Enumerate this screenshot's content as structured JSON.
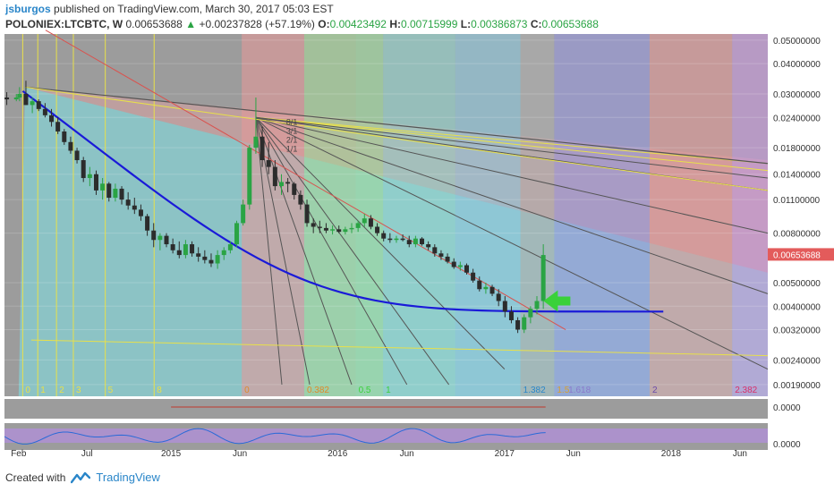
{
  "header": {
    "username": "jsburgos",
    "published_text": "published on TradingView.com, March 30, 2017 05:03 EST",
    "symbol": "POLONIEX:LTCBTC, W",
    "last": "0.00653688",
    "change": "+0.00237828 (+57.19%)",
    "o_label": "O:",
    "o_value": "0.00423492",
    "h_label": "H:",
    "h_value": "0.00715999",
    "l_label": "L:",
    "l_value": "0.00386873",
    "c_label": "C:",
    "c_value": "0.00653688"
  },
  "footer": {
    "created_with": "Created with",
    "brand": "TradingView"
  },
  "colors": {
    "up": "#2aa444",
    "down": "#2c2c2c",
    "arc": "#1a1ad8",
    "price_tag": "#e35b5b",
    "fan_dark": "#555555",
    "fan_yellow": "#e8e04a",
    "fan_red": "#d9534f",
    "arrow": "#3ad13a"
  },
  "chart_data": {
    "type": "candlestick",
    "scale": "log",
    "ylim": [
      0.0017,
      0.053
    ],
    "y_ticks": [
      "0.05000000",
      "0.04000000",
      "0.03000000",
      "0.02400000",
      "0.01800000",
      "0.01400000",
      "0.01100000",
      "0.00800000",
      "0.00500000",
      "0.00400000",
      "0.00320000",
      "0.00240000",
      "0.00190000"
    ],
    "y_tick_values": [
      0.05,
      0.04,
      0.03,
      0.024,
      0.018,
      0.014,
      0.011,
      0.008,
      0.005,
      0.004,
      0.0032,
      0.0024,
      0.0019
    ],
    "x_ticks": [
      "Feb",
      "Jul",
      "2015",
      "Jun",
      "2016",
      "Jun",
      "2017",
      "Jun",
      "2018",
      "Jun"
    ],
    "x_tick_dates": [
      "2014-02-01",
      "2014-07-01",
      "2015-01-01",
      "2015-06-01",
      "2016-01-01",
      "2016-06-01",
      "2017-01-01",
      "2017-06-01",
      "2018-01-01",
      "2018-06-01"
    ],
    "x_range": [
      "2014-01-01",
      "2018-08-01"
    ],
    "last_price": 0.00653688,
    "last_price_label": "0.00653688",
    "fib_time_labels": [
      {
        "text": "0",
        "date": "2014-02-10",
        "color": "#e8e04a"
      },
      {
        "text": "1",
        "date": "2014-03-15",
        "color": "#e8e04a"
      },
      {
        "text": "2",
        "date": "2014-04-25",
        "color": "#e8e04a"
      },
      {
        "text": "3",
        "date": "2014-06-01",
        "color": "#e8e04a"
      },
      {
        "text": "5",
        "date": "2014-08-10",
        "color": "#e8e04a"
      },
      {
        "text": "8",
        "date": "2014-11-25",
        "color": "#e8e04a"
      }
    ],
    "fib_zone_labels": [
      {
        "text": "0",
        "date": "2015-06-05",
        "color": "#e08a2a"
      },
      {
        "text": "0.382",
        "date": "2015-10-20",
        "color": "#e08a2a"
      },
      {
        "text": "0.5",
        "date": "2016-02-10",
        "color": "#3ad13a"
      },
      {
        "text": "1",
        "date": "2016-04-10",
        "color": "#3ad13a"
      },
      {
        "text": "1.382",
        "date": "2017-02-05",
        "color": "#2a86c9"
      },
      {
        "text": "1.5",
        "date": "2017-04-20",
        "color": "#d8a030"
      },
      {
        "text": "1.618",
        "date": "2017-05-15",
        "color": "#8a7acc"
      },
      {
        "text": "2",
        "date": "2017-11-15",
        "color": "#6a4aaa"
      },
      {
        "text": "2.382",
        "date": "2018-05-15",
        "color": "#d8306a"
      }
    ],
    "fan_labels": [
      "8/1",
      "3/1",
      "2/1",
      "1/1",
      "1/2",
      "1/3",
      "1/4",
      "1/8"
    ],
    "indicator_value_1": "0.0000",
    "indicator_value_2": "0.0000",
    "series": [
      {
        "name": "LTCBTC",
        "points": [
          [
            "2014-01-06",
            0.029,
            0.0305,
            0.027,
            0.0285
          ],
          [
            "2014-01-27",
            0.0285,
            0.03,
            0.028,
            0.029
          ],
          [
            "2014-02-03",
            0.029,
            0.032,
            0.028,
            0.03
          ],
          [
            "2014-02-17",
            0.03,
            0.034,
            0.027,
            0.027
          ],
          [
            "2014-03-03",
            0.027,
            0.029,
            0.025,
            0.028
          ],
          [
            "2014-03-17",
            0.028,
            0.0285,
            0.0255,
            0.026
          ],
          [
            "2014-03-31",
            0.026,
            0.0275,
            0.024,
            0.0245
          ],
          [
            "2014-04-14",
            0.0245,
            0.026,
            0.022,
            0.023
          ],
          [
            "2014-04-28",
            0.023,
            0.024,
            0.0205,
            0.021
          ],
          [
            "2014-05-12",
            0.021,
            0.0215,
            0.0185,
            0.019
          ],
          [
            "2014-05-26",
            0.019,
            0.02,
            0.017,
            0.0175
          ],
          [
            "2014-06-09",
            0.0175,
            0.018,
            0.0155,
            0.016
          ],
          [
            "2014-06-23",
            0.016,
            0.0165,
            0.013,
            0.0135
          ],
          [
            "2014-07-07",
            0.0135,
            0.015,
            0.0125,
            0.014
          ],
          [
            "2014-07-21",
            0.014,
            0.0145,
            0.0115,
            0.012
          ],
          [
            "2014-08-04",
            0.012,
            0.0135,
            0.011,
            0.0128
          ],
          [
            "2014-08-18",
            0.0128,
            0.013,
            0.0108,
            0.0112
          ],
          [
            "2014-09-01",
            0.0112,
            0.0128,
            0.0108,
            0.0122
          ],
          [
            "2014-09-15",
            0.0122,
            0.0125,
            0.0105,
            0.011
          ],
          [
            "2014-09-29",
            0.011,
            0.0118,
            0.01,
            0.0104
          ],
          [
            "2014-10-13",
            0.0104,
            0.0112,
            0.0096,
            0.01
          ],
          [
            "2014-10-27",
            0.01,
            0.0105,
            0.009,
            0.0094
          ],
          [
            "2014-11-10",
            0.0094,
            0.0096,
            0.0078,
            0.0082
          ],
          [
            "2014-11-24",
            0.0082,
            0.0088,
            0.007,
            0.0075
          ],
          [
            "2014-12-08",
            0.0075,
            0.008,
            0.0068,
            0.0078
          ],
          [
            "2014-12-22",
            0.0078,
            0.008,
            0.007,
            0.0072
          ],
          [
            "2015-01-05",
            0.0072,
            0.0076,
            0.0066,
            0.0068
          ],
          [
            "2015-01-19",
            0.0068,
            0.0074,
            0.0063,
            0.0065
          ],
          [
            "2015-02-02",
            0.0065,
            0.0075,
            0.0063,
            0.0072
          ],
          [
            "2015-02-16",
            0.0072,
            0.0074,
            0.0064,
            0.0066
          ],
          [
            "2015-03-02",
            0.0066,
            0.007,
            0.0061,
            0.0064
          ],
          [
            "2015-03-16",
            0.0064,
            0.0068,
            0.006,
            0.0062
          ],
          [
            "2015-03-30",
            0.0062,
            0.0066,
            0.0058,
            0.006
          ],
          [
            "2015-04-13",
            0.006,
            0.0068,
            0.0057,
            0.0065
          ],
          [
            "2015-04-27",
            0.0065,
            0.007,
            0.0062,
            0.0068
          ],
          [
            "2015-05-11",
            0.0068,
            0.0074,
            0.0066,
            0.0072
          ],
          [
            "2015-05-25",
            0.0072,
            0.009,
            0.007,
            0.0088
          ],
          [
            "2015-06-08",
            0.0088,
            0.011,
            0.0086,
            0.0105
          ],
          [
            "2015-06-22",
            0.0105,
            0.0185,
            0.01,
            0.018
          ],
          [
            "2015-07-06",
            0.018,
            0.029,
            0.017,
            0.02
          ],
          [
            "2015-07-20",
            0.02,
            0.022,
            0.015,
            0.016
          ],
          [
            "2015-08-03",
            0.016,
            0.019,
            0.014,
            0.015
          ],
          [
            "2015-08-17",
            0.015,
            0.016,
            0.012,
            0.0125
          ],
          [
            "2015-08-31",
            0.0125,
            0.014,
            0.0115,
            0.013
          ],
          [
            "2015-09-14",
            0.013,
            0.0135,
            0.0118,
            0.0128
          ],
          [
            "2015-09-28",
            0.0128,
            0.013,
            0.011,
            0.0115
          ],
          [
            "2015-10-12",
            0.0115,
            0.012,
            0.01,
            0.0105
          ],
          [
            "2015-10-26",
            0.0105,
            0.011,
            0.0085,
            0.0088
          ],
          [
            "2015-11-09",
            0.0088,
            0.0092,
            0.008,
            0.0085
          ],
          [
            "2015-11-23",
            0.0085,
            0.009,
            0.008,
            0.0084
          ],
          [
            "2015-12-07",
            0.0084,
            0.0088,
            0.008,
            0.0082
          ],
          [
            "2015-12-21",
            0.0082,
            0.0086,
            0.0079,
            0.0083
          ],
          [
            "2016-01-04",
            0.0083,
            0.0086,
            0.008,
            0.0081
          ],
          [
            "2016-01-18",
            0.0081,
            0.0085,
            0.0079,
            0.0083
          ],
          [
            "2016-02-01",
            0.0083,
            0.0088,
            0.008,
            0.0084
          ],
          [
            "2016-02-15",
            0.0084,
            0.009,
            0.0081,
            0.0088
          ],
          [
            "2016-02-29",
            0.0088,
            0.0096,
            0.0085,
            0.0092
          ],
          [
            "2016-03-14",
            0.0092,
            0.0095,
            0.0083,
            0.0085
          ],
          [
            "2016-03-28",
            0.0085,
            0.0088,
            0.0078,
            0.008
          ],
          [
            "2016-04-11",
            0.008,
            0.0082,
            0.0074,
            0.0076
          ],
          [
            "2016-04-25",
            0.0076,
            0.008,
            0.0073,
            0.0075
          ],
          [
            "2016-05-09",
            0.0075,
            0.0078,
            0.0073,
            0.0076
          ],
          [
            "2016-05-23",
            0.0076,
            0.0079,
            0.0074,
            0.0075
          ],
          [
            "2016-06-06",
            0.0075,
            0.0078,
            0.007,
            0.0072
          ],
          [
            "2016-06-20",
            0.0072,
            0.0078,
            0.007,
            0.0076
          ],
          [
            "2016-07-04",
            0.0076,
            0.0077,
            0.0071,
            0.0072
          ],
          [
            "2016-07-18",
            0.0072,
            0.0074,
            0.0068,
            0.007
          ],
          [
            "2016-08-01",
            0.007,
            0.0072,
            0.0064,
            0.0066
          ],
          [
            "2016-08-15",
            0.0066,
            0.0068,
            0.0062,
            0.0064
          ],
          [
            "2016-08-29",
            0.0064,
            0.0066,
            0.006,
            0.0061
          ],
          [
            "2016-09-12",
            0.0061,
            0.0063,
            0.0057,
            0.0058
          ],
          [
            "2016-09-26",
            0.0058,
            0.0061,
            0.0056,
            0.0059
          ],
          [
            "2016-10-10",
            0.0059,
            0.006,
            0.0054,
            0.0055
          ],
          [
            "2016-10-24",
            0.0055,
            0.0057,
            0.005,
            0.0051
          ],
          [
            "2016-11-07",
            0.0051,
            0.0053,
            0.0046,
            0.0047
          ],
          [
            "2016-11-21",
            0.0047,
            0.005,
            0.0045,
            0.0048
          ],
          [
            "2016-12-05",
            0.0048,
            0.0049,
            0.0044,
            0.0045
          ],
          [
            "2016-12-19",
            0.0045,
            0.0047,
            0.004,
            0.0042
          ],
          [
            "2017-01-02",
            0.0042,
            0.0044,
            0.0036,
            0.0038
          ],
          [
            "2017-01-16",
            0.0038,
            0.004,
            0.0034,
            0.0035
          ],
          [
            "2017-01-30",
            0.0035,
            0.0036,
            0.0031,
            0.0032
          ],
          [
            "2017-02-13",
            0.0032,
            0.0037,
            0.0031,
            0.0036
          ],
          [
            "2017-02-27",
            0.0036,
            0.004,
            0.0034,
            0.0039
          ],
          [
            "2017-03-13",
            0.0039,
            0.0044,
            0.0037,
            0.0042
          ],
          [
            "2017-03-27",
            0.0042,
            0.0072,
            0.0039,
            0.0065
          ]
        ]
      }
    ]
  }
}
